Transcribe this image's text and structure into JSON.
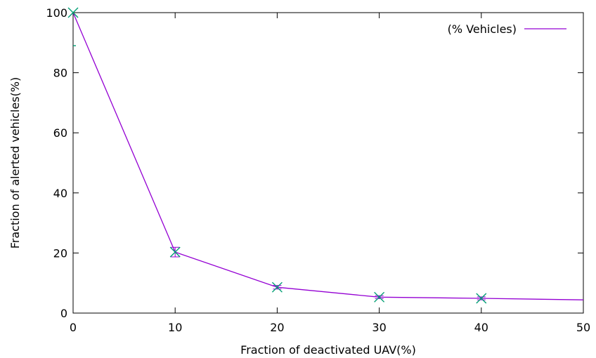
{
  "chart_data": {
    "type": "line",
    "xlabel": "Fraction of deactivated UAV(%)",
    "ylabel": "Fraction of alerted vehicles(%)",
    "xlim": [
      0,
      50
    ],
    "ylim": [
      0,
      100
    ],
    "x_ticks": [
      "0",
      "10",
      "20",
      "30",
      "40",
      "50"
    ],
    "y_ticks": [
      "0",
      "20",
      "40",
      "60",
      "80",
      "100"
    ],
    "x_tick_values": [
      0,
      10,
      20,
      30,
      40,
      50
    ],
    "y_tick_values": [
      0,
      20,
      40,
      60,
      80,
      100
    ],
    "grid": false,
    "legend_position": "top-right",
    "series": [
      {
        "name": "(% Vehicles)",
        "color": "#9400d3",
        "x": [
          0,
          10,
          20,
          30,
          40,
          50
        ],
        "values": [
          100,
          20.3,
          8.6,
          5.3,
          4.9,
          4.4
        ],
        "error": [
          0,
          1.6,
          0.6,
          0.5,
          0.5,
          0
        ]
      }
    ],
    "marker_color": "#009e73",
    "marker_x": [
      0,
      10,
      20,
      30,
      40
    ],
    "marker_y": [
      100,
      20.3,
      8.6,
      5.3,
      4.9
    ],
    "extra_marker": {
      "x": 0,
      "y": 89
    }
  }
}
